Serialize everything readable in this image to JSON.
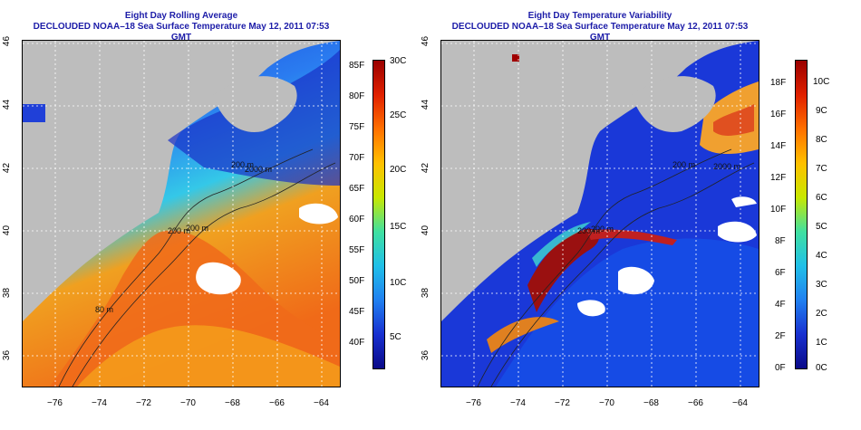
{
  "left_panel": {
    "title": "Eight Day Rolling Average",
    "subtitle": "DECLOUDED NOAA–18 Sea Surface Temperature May 12, 2011 07:53 GMT",
    "colorbar_f": [
      "85F",
      "80F",
      "75F",
      "70F",
      "65F",
      "60F",
      "55F",
      "50F",
      "45F",
      "40F"
    ],
    "colorbar_c": [
      "30C",
      "25C",
      "20C",
      "15C",
      "10C",
      "5C"
    ],
    "contours": [
      "200 m",
      "2000 m",
      "200 m",
      "200 m",
      "80 m"
    ]
  },
  "right_panel": {
    "title": "Eight Day Temperature Variability",
    "subtitle": "DECLOUDED NOAA–18 Sea Surface Temperature May 12, 2011 07:53 GMT",
    "colorbar_f": [
      "18F",
      "16F",
      "14F",
      "12F",
      "10F",
      "8F",
      "6F",
      "4F",
      "2F",
      "0F"
    ],
    "colorbar_c": [
      "10C",
      "9C",
      "8C",
      "7C",
      "6C",
      "5C",
      "4C",
      "3C",
      "2C",
      "1C",
      "0C"
    ],
    "contours": [
      "200 m",
      "2000 m",
      "200 m",
      "200 m"
    ]
  },
  "axes": {
    "lon_labels": [
      "−76",
      "−74",
      "−72",
      "−70",
      "−68",
      "−66",
      "−64"
    ],
    "lat_labels": [
      "46",
      "44",
      "42",
      "40",
      "38",
      "36"
    ]
  },
  "colors": {
    "title": "#1c1ca8",
    "land": "#bdbdbd"
  }
}
